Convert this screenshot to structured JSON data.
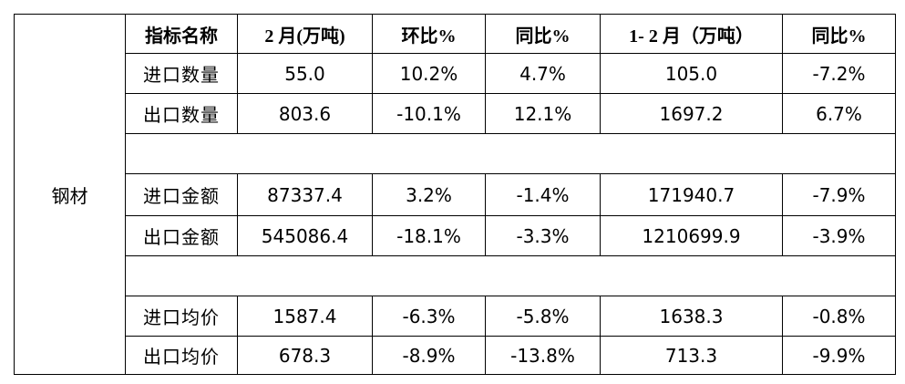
{
  "table": {
    "side_label": "钢材",
    "header": [
      "指标名称",
      "2 月(万吨)",
      "环比%",
      "同比%",
      "1- 2 月（万吨）",
      "同比%"
    ],
    "rows": [
      [
        "进口数量",
        "55.0",
        "10.2%",
        "4.7%",
        "105.0",
        "-7.2%"
      ],
      [
        "出口数量",
        "803.6",
        "-10.1%",
        "12.1%",
        "1697.2",
        "6.7%"
      ],
      [
        "进口金额",
        "87337.4",
        "3.2%",
        "-1.4%",
        "171940.7",
        "-7.9%"
      ],
      [
        "出口金额",
        "545086.4",
        "-18.1%",
        "-3.3%",
        "1210699.9",
        "-3.9%"
      ],
      [
        "进口均价",
        "1587.4",
        "-6.3%",
        "-5.8%",
        "1638.3",
        "-0.8%"
      ],
      [
        "出口均价",
        "678.3",
        "-8.9%",
        "-13.8%",
        "713.3",
        "-9.9%"
      ]
    ]
  }
}
